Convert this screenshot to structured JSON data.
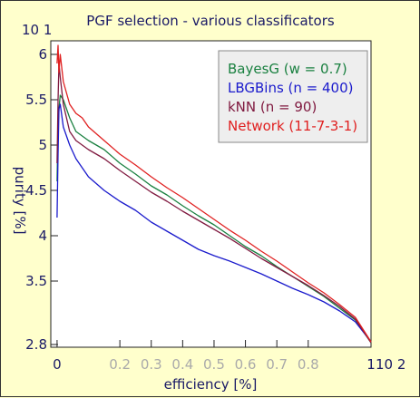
{
  "chart_data": {
    "type": "line",
    "title": "PGF selection - various classificators",
    "xlabel": "efficiency [%]",
    "ylabel": "purity [%]",
    "x_exponent": "10 2",
    "y_exponent": "10 1",
    "xlim": [
      -0.02,
      1.0
    ],
    "ylim": [
      2.77,
      6.15
    ],
    "x_ticks": [
      {
        "value": 0.0,
        "label": "0",
        "style": "major"
      },
      {
        "value": 0.2,
        "label": "0.2",
        "style": "minor"
      },
      {
        "value": 0.3,
        "label": "0.3",
        "style": "minor"
      },
      {
        "value": 0.4,
        "label": "0.4",
        "style": "minor"
      },
      {
        "value": 0.5,
        "label": "0.5",
        "style": "minor"
      },
      {
        "value": 0.6,
        "label": "0.6",
        "style": "minor"
      },
      {
        "value": 0.7,
        "label": "0.7",
        "style": "minor"
      },
      {
        "value": 0.8,
        "label": "0.8",
        "style": "minor"
      },
      {
        "value": 1.0,
        "label": "1",
        "style": "major"
      }
    ],
    "y_ticks": [
      {
        "value": 2.8,
        "label": "2.8"
      },
      {
        "value": 3.5,
        "label": "3.5"
      },
      {
        "value": 4.0,
        "label": "4"
      },
      {
        "value": 4.5,
        "label": "4.5"
      },
      {
        "value": 5.0,
        "label": "5"
      },
      {
        "value": 5.5,
        "label": "5.5"
      },
      {
        "value": 6.0,
        "label": "6"
      }
    ],
    "grid": false,
    "legend_position": "top-right",
    "series": [
      {
        "name": "BayesG (w = 0.7)",
        "color": "#1a8040",
        "x": [
          0.0,
          0.003,
          0.006,
          0.01,
          0.02,
          0.04,
          0.06,
          0.08,
          0.1,
          0.15,
          0.2,
          0.25,
          0.3,
          0.35,
          0.4,
          0.45,
          0.5,
          0.55,
          0.6,
          0.65,
          0.7,
          0.75,
          0.8,
          0.85,
          0.9,
          0.95,
          1.0
        ],
        "y": [
          4.6,
          5.2,
          5.4,
          5.55,
          5.5,
          5.3,
          5.15,
          5.1,
          5.05,
          4.95,
          4.8,
          4.68,
          4.55,
          4.45,
          4.33,
          4.22,
          4.12,
          4.0,
          3.88,
          3.78,
          3.66,
          3.55,
          3.44,
          3.33,
          3.2,
          3.07,
          2.82
        ]
      },
      {
        "name": "LBGBins (n = 400)",
        "color": "#1a1acc",
        "x": [
          0.0,
          0.003,
          0.006,
          0.01,
          0.02,
          0.04,
          0.06,
          0.08,
          0.1,
          0.15,
          0.2,
          0.25,
          0.3,
          0.35,
          0.4,
          0.45,
          0.5,
          0.55,
          0.6,
          0.65,
          0.7,
          0.75,
          0.8,
          0.85,
          0.9,
          0.95,
          1.0
        ],
        "y": [
          4.2,
          4.9,
          5.4,
          5.45,
          5.2,
          5.0,
          4.85,
          4.75,
          4.65,
          4.5,
          4.38,
          4.28,
          4.15,
          4.05,
          3.95,
          3.85,
          3.78,
          3.72,
          3.65,
          3.58,
          3.5,
          3.42,
          3.35,
          3.27,
          3.17,
          3.05,
          2.83
        ]
      },
      {
        "name": "kNN (n = 90)",
        "color": "#801a40",
        "x": [
          0.0,
          0.003,
          0.006,
          0.01,
          0.02,
          0.04,
          0.06,
          0.08,
          0.1,
          0.15,
          0.2,
          0.25,
          0.3,
          0.35,
          0.4,
          0.45,
          0.5,
          0.55,
          0.6,
          0.65,
          0.7,
          0.75,
          0.8,
          0.85,
          0.9,
          0.95,
          1.0
        ],
        "y": [
          4.8,
          5.5,
          5.9,
          5.75,
          5.45,
          5.15,
          5.05,
          5.0,
          4.95,
          4.85,
          4.72,
          4.6,
          4.48,
          4.38,
          4.27,
          4.17,
          4.07,
          3.97,
          3.86,
          3.75,
          3.65,
          3.55,
          3.45,
          3.34,
          3.22,
          3.08,
          2.82
        ]
      },
      {
        "name": "Network (11-7-3-1)",
        "color": "#e02020",
        "x": [
          0.0,
          0.003,
          0.006,
          0.01,
          0.02,
          0.04,
          0.06,
          0.08,
          0.1,
          0.15,
          0.2,
          0.25,
          0.3,
          0.35,
          0.4,
          0.45,
          0.5,
          0.55,
          0.6,
          0.65,
          0.7,
          0.75,
          0.8,
          0.85,
          0.9,
          0.95,
          1.0
        ],
        "y": [
          5.9,
          6.1,
          5.8,
          6.0,
          5.7,
          5.45,
          5.35,
          5.3,
          5.2,
          5.05,
          4.9,
          4.78,
          4.65,
          4.53,
          4.42,
          4.3,
          4.18,
          4.06,
          3.95,
          3.83,
          3.72,
          3.6,
          3.48,
          3.37,
          3.24,
          3.1,
          2.83
        ]
      }
    ]
  }
}
